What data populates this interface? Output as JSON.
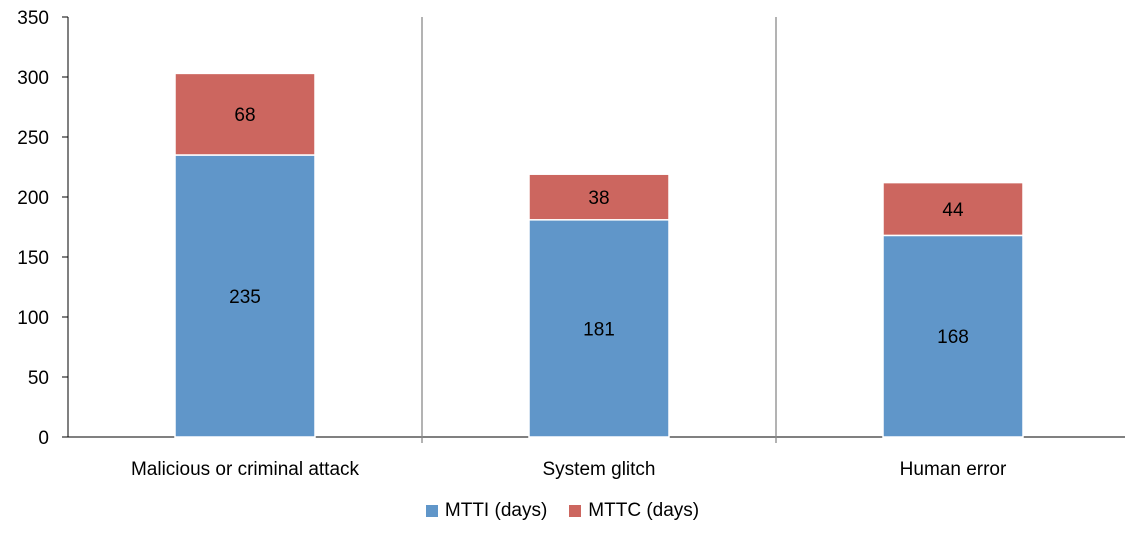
{
  "chart_data": {
    "type": "bar",
    "stacked": true,
    "categories": [
      "Malicious or criminal attack",
      "System glitch",
      "Human error"
    ],
    "series": [
      {
        "name": "MTTI (days)",
        "values": [
          235,
          181,
          168
        ],
        "color": "#6096C9"
      },
      {
        "name": "MTTC (days)",
        "values": [
          68,
          38,
          44
        ],
        "color": "#CC665F"
      }
    ],
    "ylim": [
      0,
      350
    ],
    "yticks": [
      0,
      50,
      100,
      150,
      200,
      250,
      300,
      350
    ],
    "xlabel": "",
    "ylabel": "",
    "title": "",
    "grid": false,
    "category_separators": true,
    "data_labels": true,
    "legend_position": "bottom"
  }
}
